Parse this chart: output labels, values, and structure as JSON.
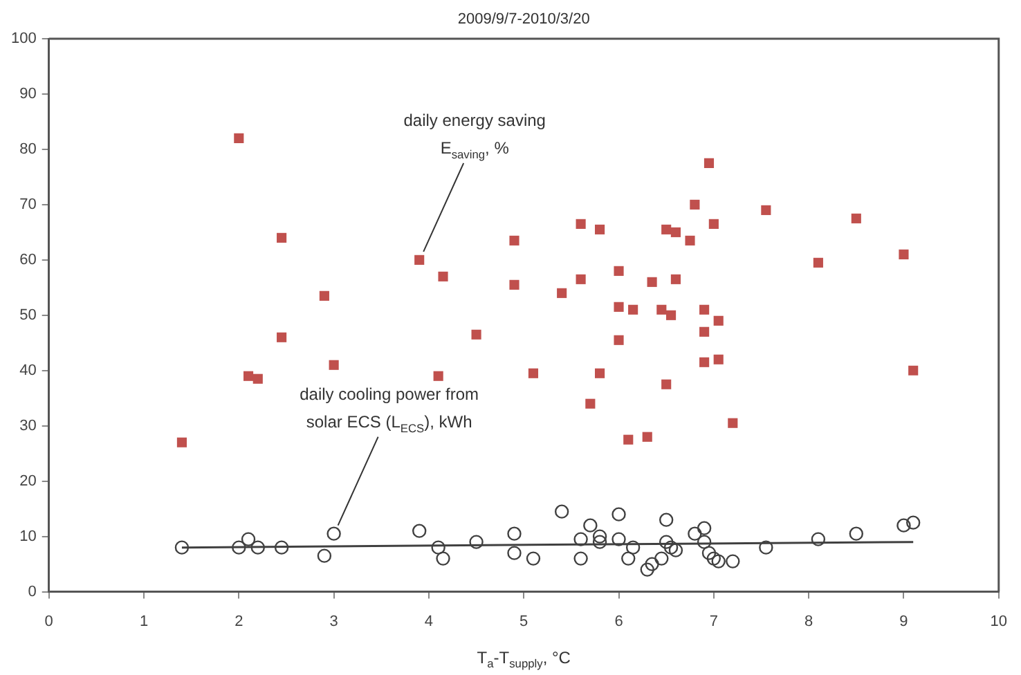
{
  "chart_data": {
    "type": "scatter",
    "title": "2009/9/7-2010/3/20",
    "xlabel": "T$_{a}$-T$_{supply}$, °C",
    "xlim": [
      0,
      10
    ],
    "xticks": [
      0,
      1,
      2,
      3,
      4,
      5,
      6,
      7,
      8,
      9,
      10
    ],
    "ylim": [
      0,
      100
    ],
    "yticks": [
      0,
      10,
      20,
      30,
      40,
      50,
      60,
      70,
      80,
      90,
      100
    ],
    "grid": false,
    "legend": false,
    "series": [
      {
        "marker": "square",
        "color": "#c0504d",
        "x": [
          1.4,
          2.0,
          2.1,
          2.2,
          2.45,
          2.45,
          2.9,
          3.0,
          3.9,
          4.1,
          4.15,
          4.5,
          4.9,
          4.9,
          5.1,
          5.4,
          5.6,
          5.6,
          5.7,
          5.8,
          5.8,
          6.0,
          6.0,
          6.0,
          6.1,
          6.15,
          6.3,
          6.35,
          6.45,
          6.5,
          6.5,
          6.55,
          6.6,
          6.6,
          6.75,
          6.8,
          6.9,
          6.9,
          6.9,
          6.95,
          7.0,
          7.05,
          7.05,
          7.2,
          7.55,
          8.1,
          8.5,
          9.0,
          9.1
        ],
        "values": [
          27,
          82,
          39,
          38.5,
          64,
          46,
          53.5,
          41,
          60,
          39,
          57,
          46.5,
          63.5,
          55.5,
          39.5,
          54,
          66.5,
          56.5,
          34,
          39.5,
          65.5,
          58,
          51.5,
          45.5,
          27.5,
          51,
          28,
          56,
          51,
          65.5,
          37.5,
          50,
          65,
          56.5,
          63.5,
          70,
          51,
          47,
          41.5,
          77.5,
          66.5,
          49,
          42,
          30.5,
          69,
          59.5,
          67.5,
          61,
          40
        ]
      },
      {
        "marker": "circle",
        "color": "#404040",
        "x": [
          1.4,
          2.0,
          2.1,
          2.2,
          2.45,
          2.9,
          3.0,
          3.9,
          4.1,
          4.15,
          4.5,
          4.9,
          4.9,
          5.1,
          5.4,
          5.6,
          5.6,
          5.7,
          5.8,
          5.8,
          6.0,
          6.0,
          6.1,
          6.15,
          6.3,
          6.35,
          6.45,
          6.5,
          6.5,
          6.55,
          6.6,
          6.8,
          6.9,
          6.9,
          6.95,
          7.0,
          7.05,
          7.2,
          7.55,
          8.1,
          8.5,
          9.0,
          9.1
        ],
        "values": [
          8,
          8,
          9.5,
          8,
          8,
          6.5,
          10.5,
          11,
          8,
          6,
          9,
          10.5,
          7,
          6,
          14.5,
          9.5,
          6,
          12,
          9,
          10,
          14,
          9.5,
          6,
          8,
          4,
          5,
          6,
          9,
          13,
          8,
          7.5,
          10.5,
          11.5,
          9,
          7,
          6,
          5.5,
          5.5,
          8,
          9.5,
          10.5,
          12,
          12.5
        ]
      },
      {
        "type": "line",
        "marker": "none",
        "color": "#404040",
        "x": [
          1.4,
          9.1
        ],
        "values": [
          8,
          9
        ]
      }
    ],
    "annotations": [
      {
        "text": "daily energy saving\nE$_{saving}$, %",
        "x": 3.9,
        "y": 60
      },
      {
        "text": "daily cooling power from\nsolar ECS (L$_{ECS}$), kWh",
        "x": 3.0,
        "y": 10.5
      }
    ]
  }
}
